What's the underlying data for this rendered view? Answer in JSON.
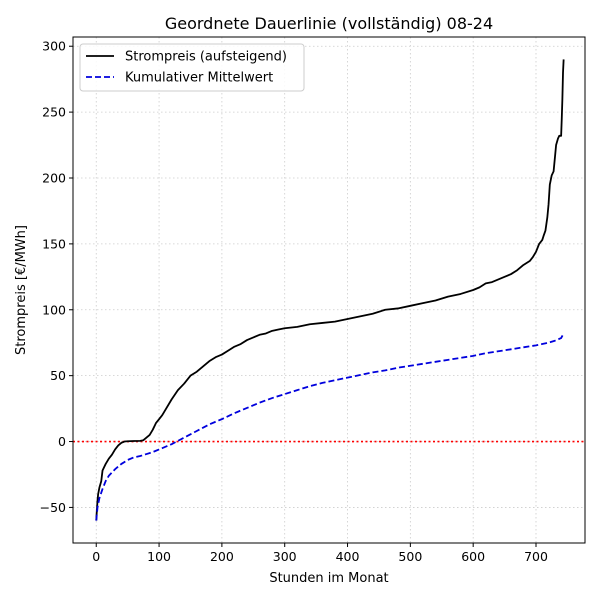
{
  "chart_data": {
    "type": "line",
    "title": "Geordnete Dauerlinie (vollständig) 08-24",
    "xlabel": "Stunden im Monat",
    "ylabel": "Strompreis [€/MWh]",
    "xlim": [
      -37,
      778
    ],
    "ylim": [
      -77,
      307
    ],
    "x_ticks": [
      0,
      100,
      200,
      300,
      400,
      500,
      600,
      700
    ],
    "y_ticks": [
      -50,
      0,
      50,
      100,
      150,
      200,
      250,
      300
    ],
    "x_tick_labels": [
      "0",
      "100",
      "200",
      "300",
      "400",
      "500",
      "600",
      "700"
    ],
    "y_tick_labels": [
      "−50",
      "0",
      "50",
      "100",
      "150",
      "200",
      "250",
      "300"
    ],
    "grid": true,
    "legend_position": "top-left",
    "reference_line": {
      "y": 0,
      "color": "#ff0000",
      "style": "dotted"
    },
    "series": [
      {
        "name": "Strompreis (aufsteigend)",
        "color": "#000000",
        "style": "solid",
        "x": [
          0,
          1,
          2,
          3,
          5,
          8,
          10,
          12,
          15,
          20,
          25,
          30,
          35,
          40,
          45,
          50,
          55,
          60,
          70,
          75,
          80,
          85,
          90,
          95,
          100,
          105,
          110,
          120,
          130,
          140,
          150,
          160,
          170,
          180,
          190,
          200,
          210,
          220,
          230,
          240,
          250,
          260,
          270,
          280,
          290,
          300,
          320,
          340,
          360,
          380,
          400,
          420,
          440,
          460,
          480,
          500,
          520,
          540,
          560,
          580,
          600,
          610,
          620,
          630,
          640,
          650,
          660,
          670,
          675,
          680,
          690,
          695,
          700,
          705,
          710,
          712,
          715,
          718,
          720,
          722,
          725,
          728,
          730,
          732,
          735,
          737,
          740,
          741,
          742,
          743,
          744
        ],
        "y": [
          -60,
          -52,
          -45,
          -40,
          -35,
          -30,
          -22,
          -20,
          -17,
          -13,
          -10,
          -6,
          -3,
          -1,
          0,
          0.2,
          0.3,
          0.4,
          0.5,
          1,
          3,
          5,
          9,
          14,
          17,
          20,
          24,
          32,
          39,
          44,
          50,
          53,
          57,
          61,
          64,
          66,
          69,
          72,
          74,
          77,
          79,
          81,
          82,
          84,
          85,
          86,
          87,
          89,
          90,
          91,
          93,
          95,
          97,
          100,
          101,
          103,
          105,
          107,
          110,
          112,
          115,
          117,
          120,
          121,
          123,
          125,
          127,
          130,
          132,
          134,
          137,
          140,
          144,
          150,
          153,
          156,
          160,
          170,
          180,
          195,
          202,
          205,
          215,
          225,
          230,
          232,
          232,
          245,
          260,
          280,
          290
        ]
      },
      {
        "name": "Kumulativer Mittelwert",
        "color": "#0000dd",
        "style": "dashed",
        "x": [
          0,
          2,
          5,
          10,
          15,
          20,
          30,
          40,
          50,
          60,
          70,
          80,
          90,
          100,
          110,
          120,
          130,
          140,
          150,
          160,
          180,
          200,
          220,
          240,
          260,
          280,
          300,
          320,
          340,
          360,
          380,
          400,
          420,
          440,
          460,
          480,
          500,
          520,
          540,
          560,
          580,
          600,
          620,
          640,
          660,
          680,
          700,
          710,
          720,
          730,
          740,
          744
        ],
        "y": [
          -60,
          -50,
          -43,
          -36,
          -30,
          -26,
          -21,
          -17,
          -14,
          -12,
          -11,
          -9.5,
          -8,
          -6,
          -4,
          -2,
          0.5,
          3,
          5.5,
          8,
          13,
          17,
          21.5,
          25.5,
          29.5,
          33,
          36,
          39,
          42,
          44.5,
          46.5,
          48.5,
          50.5,
          52.5,
          54,
          56,
          57.5,
          59,
          60.5,
          62,
          63.5,
          65,
          67,
          68.5,
          70,
          71.5,
          73,
          74,
          75,
          76.5,
          78.5,
          82
        ]
      }
    ]
  }
}
